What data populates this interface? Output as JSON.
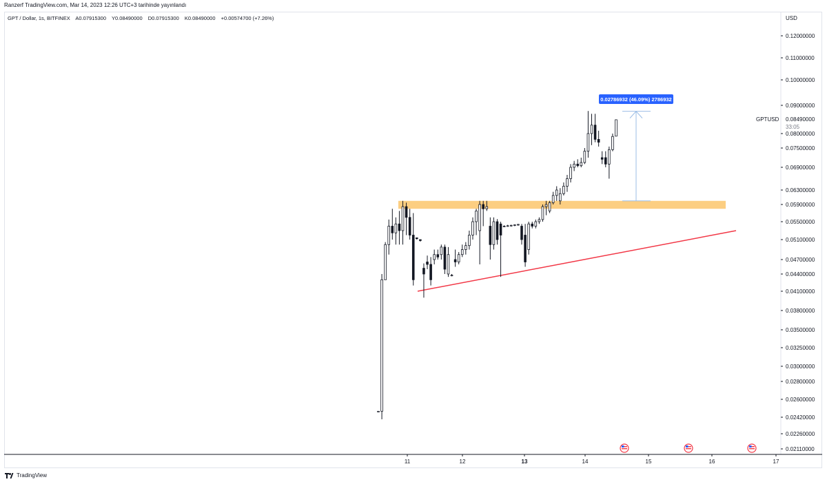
{
  "header": {
    "caption": "Ranzerf TradingView.com, Mar 14, 2023 12:26 UTC+3 tarihinde yayınlandı"
  },
  "legend": {
    "symbol": "GPT / Dollar, 1s, BITFINEX",
    "open": "A0.07915300",
    "high": "Y0.08490000",
    "low": "D0.07915300",
    "close": "K0.08490000",
    "change": "+0.00574700 (+7.26%)"
  },
  "footer": {
    "brand": "TradingView"
  },
  "colors": {
    "candle_border": "#131722",
    "zone": "#fbc56b",
    "trendline": "#f23645",
    "measure": "#9bbde6",
    "measure_label_bg": "#2962ff",
    "axis_text": "#131722"
  },
  "chart_data": {
    "type": "candlestick",
    "currency": "USD",
    "symbol_label": "GPTUSD",
    "last_price": "0.08490000",
    "countdown": "33:05",
    "y_ticks": [
      "0.12000000",
      "0.11000000",
      "0.10000000",
      "0.09000000",
      "0.08000000",
      "0.07500000",
      "0.06900000",
      "0.06300000",
      "0.05900000",
      "0.05500000",
      "0.05100000",
      "0.04700000",
      "0.04400000",
      "0.04100000",
      "0.03800000",
      "0.03500000",
      "0.03250000",
      "0.03000000",
      "0.02800000",
      "0.02600000",
      "0.02420000",
      "0.02260000",
      "0.02110000"
    ],
    "x_ticks": [
      "11",
      "12",
      "13",
      "14",
      "15",
      "16",
      "17"
    ],
    "bold_x_tick": "13",
    "candles": [
      [
        0.0248,
        0.0248,
        0.0248,
        0.0248
      ],
      [
        0.0248,
        0.044,
        0.024,
        0.043
      ],
      [
        0.043,
        0.0505,
        0.043,
        0.05
      ],
      [
        0.05,
        0.0555,
        0.048,
        0.054
      ],
      [
        0.054,
        0.058,
        0.051,
        0.0525
      ],
      [
        0.0525,
        0.056,
        0.05,
        0.0545
      ],
      [
        0.0545,
        0.0575,
        0.05,
        0.053
      ],
      [
        0.053,
        0.06,
        0.05,
        0.0585
      ],
      [
        0.0585,
        0.0595,
        0.052,
        0.056
      ],
      [
        0.056,
        0.058,
        0.051,
        0.052
      ],
      [
        0.052,
        0.057,
        0.042,
        0.043
      ],
      [
        0.0514,
        0.0514,
        0.051,
        0.0512
      ],
      [
        0.051,
        0.051,
        0.0506,
        0.0508
      ],
      [
        0.0452,
        0.0462,
        0.04,
        0.044
      ],
      [
        0.0465,
        0.0478,
        0.045,
        0.046
      ],
      [
        0.046,
        0.0475,
        0.042,
        0.043
      ],
      [
        0.047,
        0.049,
        0.046,
        0.048
      ],
      [
        0.048,
        0.049,
        0.047,
        0.0475
      ],
      [
        0.048,
        0.05,
        0.047,
        0.0495
      ],
      [
        0.0495,
        0.05,
        0.044,
        0.045
      ],
      [
        0.044,
        0.0495,
        0.0435,
        0.048
      ],
      [
        0.0438,
        0.044,
        0.0436,
        0.0438
      ],
      [
        0.047,
        0.049,
        0.0455,
        0.0465
      ],
      [
        0.0465,
        0.0485,
        0.046,
        0.048
      ],
      [
        0.048,
        0.05,
        0.0475,
        0.049
      ],
      [
        0.049,
        0.0505,
        0.048,
        0.0498
      ],
      [
        0.0498,
        0.053,
        0.049,
        0.052
      ],
      [
        0.052,
        0.056,
        0.051,
        0.055
      ],
      [
        0.055,
        0.058,
        0.052,
        0.0575
      ],
      [
        0.053,
        0.06,
        0.046,
        0.059
      ],
      [
        0.059,
        0.06,
        0.054,
        0.058
      ],
      [
        0.058,
        0.06,
        0.0575,
        0.0585
      ],
      [
        0.054,
        0.056,
        0.047,
        0.05
      ],
      [
        0.05,
        0.056,
        0.049,
        0.055
      ],
      [
        0.055,
        0.0556,
        0.05,
        0.051
      ],
      [
        0.0545,
        0.055,
        0.0435,
        0.052
      ],
      [
        0.054,
        0.0542,
        0.0538,
        0.054
      ],
      [
        0.0541,
        0.0543,
        0.0539,
        0.0541
      ],
      [
        0.0541,
        0.0543,
        0.0539,
        0.0542
      ],
      [
        0.0542,
        0.0544,
        0.054,
        0.0543
      ],
      [
        0.0543,
        0.0545,
        0.0541,
        0.0544
      ],
      [
        0.054,
        0.0545,
        0.05,
        0.051
      ],
      [
        0.052,
        0.0545,
        0.0455,
        0.0465
      ],
      [
        0.049,
        0.055,
        0.048,
        0.0545
      ],
      [
        0.0545,
        0.055,
        0.0535,
        0.054
      ],
      [
        0.054,
        0.0555,
        0.0535,
        0.055
      ],
      [
        0.055,
        0.056,
        0.0545,
        0.0555
      ],
      [
        0.0555,
        0.059,
        0.055,
        0.0585
      ],
      [
        0.0585,
        0.06,
        0.0565,
        0.059
      ],
      [
        0.0575,
        0.06,
        0.057,
        0.0595
      ],
      [
        0.0595,
        0.0625,
        0.059,
        0.0615
      ],
      [
        0.0615,
        0.064,
        0.06,
        0.063
      ],
      [
        0.06,
        0.0635,
        0.059,
        0.062
      ],
      [
        0.062,
        0.065,
        0.0615,
        0.064
      ],
      [
        0.064,
        0.067,
        0.0625,
        0.066
      ],
      [
        0.066,
        0.07,
        0.065,
        0.069
      ],
      [
        0.069,
        0.071,
        0.068,
        0.07
      ],
      [
        0.07,
        0.0715,
        0.069,
        0.0695
      ],
      [
        0.0695,
        0.072,
        0.069,
        0.0705
      ],
      [
        0.0705,
        0.075,
        0.07,
        0.074
      ],
      [
        0.074,
        0.088,
        0.072,
        0.08
      ],
      [
        0.08,
        0.087,
        0.076,
        0.083
      ],
      [
        0.083,
        0.087,
        0.077,
        0.078
      ],
      [
        0.078,
        0.081,
        0.0755,
        0.077
      ],
      [
        0.072,
        0.074,
        0.07,
        0.0715
      ],
      [
        0.072,
        0.074,
        0.069,
        0.07
      ],
      [
        0.07,
        0.0755,
        0.066,
        0.0745
      ],
      [
        0.0745,
        0.08,
        0.074,
        0.079
      ],
      [
        0.0791,
        0.0849,
        0.0791,
        0.0849
      ]
    ],
    "support_zone": {
      "low": 0.058,
      "high": 0.06
    },
    "trendline": {
      "from": 0.041,
      "to": 0.053
    },
    "measure": {
      "label": "0.02786932 (46.09%) 2786932",
      "from": 0.06,
      "to": 0.0879
    },
    "event_markers": [
      "15",
      "16",
      "17"
    ]
  }
}
